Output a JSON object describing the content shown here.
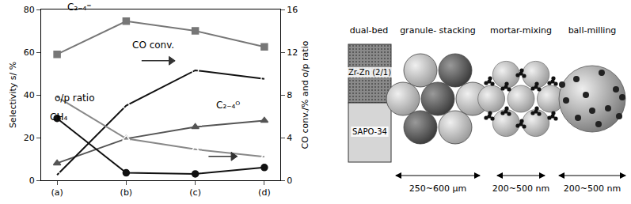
{
  "chart_data": {
    "type": "line",
    "categories": [
      "(a)",
      "(b)",
      "(c)",
      "(d)"
    ],
    "y_label": "Selectivity s/ %",
    "y2_label": "CO conv./% and o/p ratio",
    "ylim": [
      0,
      80
    ],
    "yticks": [
      0,
      20,
      40,
      60,
      80
    ],
    "y2lim": [
      0,
      16
    ],
    "y2ticks": [
      0,
      4,
      8,
      12,
      16
    ],
    "grid": false,
    "series": [
      {
        "name": "C₂₋₄⁼",
        "color": "#777777",
        "marker": "square",
        "values": [
          59,
          74.5,
          70,
          62.5
        ]
      },
      {
        "name": "C₂₋₄ᴼ",
        "color": "#555555",
        "marker": "triangle-up",
        "values": [
          8,
          19.5,
          25,
          28
        ]
      },
      {
        "name": "CH₄",
        "color": "#111111",
        "marker": "circle",
        "values": [
          29,
          3.5,
          3,
          6
        ]
      },
      {
        "name": "CO conv.",
        "color": "#111111",
        "marker": "circle-open",
        "axis": "y2",
        "values": [
          0.5,
          7,
          10.3,
          9.5
        ]
      },
      {
        "name": "o/p ratio",
        "color": "#888888",
        "marker": "triangle-up-open",
        "axis": "y2",
        "values": [
          7.8,
          3.9,
          2.9,
          2.2
        ]
      }
    ]
  },
  "diagram": {
    "panels": [
      {
        "title": "dual-bed",
        "labels": [
          "Zr-Zn (2/1)",
          "SAPO-34"
        ]
      },
      {
        "title": "granule- stacking",
        "size": "250~600 μm"
      },
      {
        "title": "mortar-mixing",
        "size": "200~500 nm"
      },
      {
        "title": "ball-milling",
        "size": "200~500 nm"
      }
    ]
  }
}
